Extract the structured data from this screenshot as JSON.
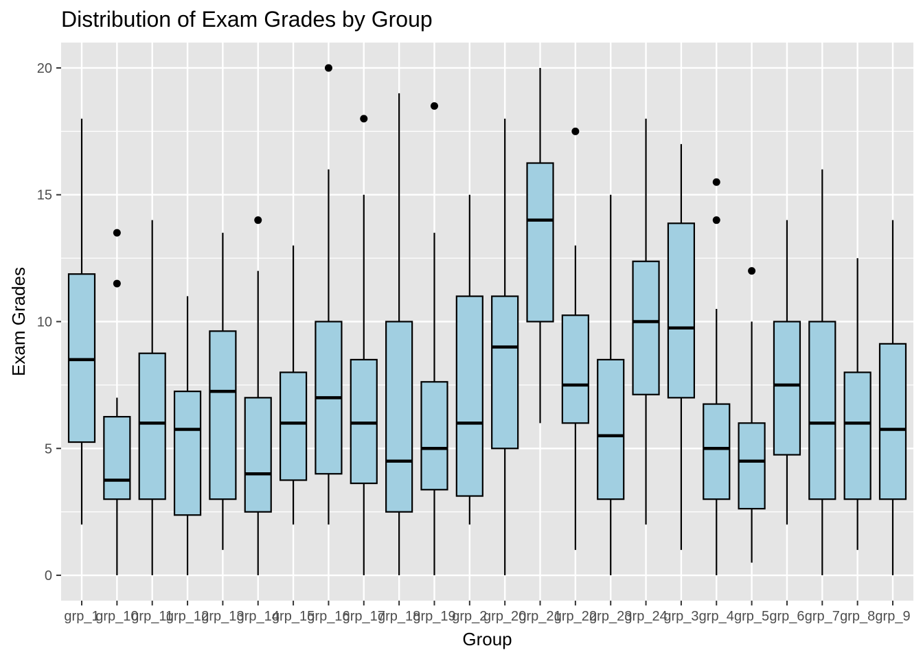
{
  "chart_data": {
    "type": "boxplot",
    "title": "Distribution of Exam Grades by Group",
    "xlabel": "Group",
    "ylabel": "Exam Grades",
    "ylim": [
      -1,
      21
    ],
    "yticks": [
      0,
      5,
      10,
      15,
      20
    ],
    "grid": true,
    "legend": "none",
    "colors": {
      "panel": "#e5e5e5",
      "grid": "#ffffff",
      "box_fill": "#a1cfe1",
      "box_stroke": "#000000"
    },
    "groups": [
      {
        "label": "grp_1",
        "min": 2,
        "q1": 5.25,
        "median": 8.5,
        "q3": 11.875,
        "max": 18,
        "outliers": []
      },
      {
        "label": "grp_10",
        "min": 0,
        "q1": 3,
        "median": 3.75,
        "q3": 6.25,
        "max": 7,
        "outliers": [
          11.5,
          13.5
        ]
      },
      {
        "label": "grp_11",
        "min": 0,
        "q1": 3,
        "median": 6,
        "q3": 8.75,
        "max": 14,
        "outliers": []
      },
      {
        "label": "grp_12",
        "min": 0,
        "q1": 2.375,
        "median": 5.75,
        "q3": 7.25,
        "max": 11,
        "outliers": []
      },
      {
        "label": "grp_13",
        "min": 1,
        "q1": 3,
        "median": 7.25,
        "q3": 9.625,
        "max": 13.5,
        "outliers": []
      },
      {
        "label": "grp_14",
        "min": 0,
        "q1": 2.5,
        "median": 4,
        "q3": 7,
        "max": 12,
        "outliers": [
          14
        ]
      },
      {
        "label": "grp_15",
        "min": 2,
        "q1": 3.75,
        "median": 6,
        "q3": 8,
        "max": 13,
        "outliers": []
      },
      {
        "label": "grp_16",
        "min": 2,
        "q1": 4,
        "median": 7,
        "q3": 10,
        "max": 16,
        "outliers": [
          20
        ]
      },
      {
        "label": "grp_17",
        "min": 0,
        "q1": 3.625,
        "median": 6,
        "q3": 8.5,
        "max": 15,
        "outliers": [
          18
        ]
      },
      {
        "label": "grp_18",
        "min": 0,
        "q1": 2.5,
        "median": 4.5,
        "q3": 10,
        "max": 19,
        "outliers": []
      },
      {
        "label": "grp_19",
        "min": 0,
        "q1": 3.375,
        "median": 5,
        "q3": 7.625,
        "max": 13.5,
        "outliers": [
          18.5
        ]
      },
      {
        "label": "grp_2",
        "min": 2,
        "q1": 3.125,
        "median": 6,
        "q3": 11,
        "max": 15,
        "outliers": []
      },
      {
        "label": "grp_20",
        "min": 0,
        "q1": 5,
        "median": 9,
        "q3": 11,
        "max": 18,
        "outliers": []
      },
      {
        "label": "grp_21",
        "min": 6,
        "q1": 10,
        "median": 14,
        "q3": 16.25,
        "max": 20,
        "outliers": []
      },
      {
        "label": "grp_22",
        "min": 1,
        "q1": 6,
        "median": 7.5,
        "q3": 10.25,
        "max": 13,
        "outliers": [
          17.5
        ]
      },
      {
        "label": "grp_23",
        "min": 0,
        "q1": 3,
        "median": 5.5,
        "q3": 8.5,
        "max": 15,
        "outliers": []
      },
      {
        "label": "grp_24",
        "min": 2,
        "q1": 7.125,
        "median": 10,
        "q3": 12.375,
        "max": 18,
        "outliers": []
      },
      {
        "label": "grp_3",
        "min": 1,
        "q1": 7,
        "median": 9.75,
        "q3": 13.875,
        "max": 17,
        "outliers": []
      },
      {
        "label": "grp_4",
        "min": 0,
        "q1": 3,
        "median": 5,
        "q3": 6.75,
        "max": 10.5,
        "outliers": [
          14,
          15.5
        ]
      },
      {
        "label": "grp_5",
        "min": 0.5,
        "q1": 2.625,
        "median": 4.5,
        "q3": 6,
        "max": 10,
        "outliers": [
          12
        ]
      },
      {
        "label": "grp_6",
        "min": 2,
        "q1": 4.75,
        "median": 7.5,
        "q3": 10,
        "max": 14,
        "outliers": []
      },
      {
        "label": "grp_7",
        "min": 0,
        "q1": 3,
        "median": 6,
        "q3": 10,
        "max": 16,
        "outliers": []
      },
      {
        "label": "grp_8",
        "min": 1,
        "q1": 3,
        "median": 6,
        "q3": 8,
        "max": 12.5,
        "outliers": []
      },
      {
        "label": "grp_9",
        "min": 0,
        "q1": 3,
        "median": 5.75,
        "q3": 9.125,
        "max": 14,
        "outliers": []
      }
    ]
  }
}
